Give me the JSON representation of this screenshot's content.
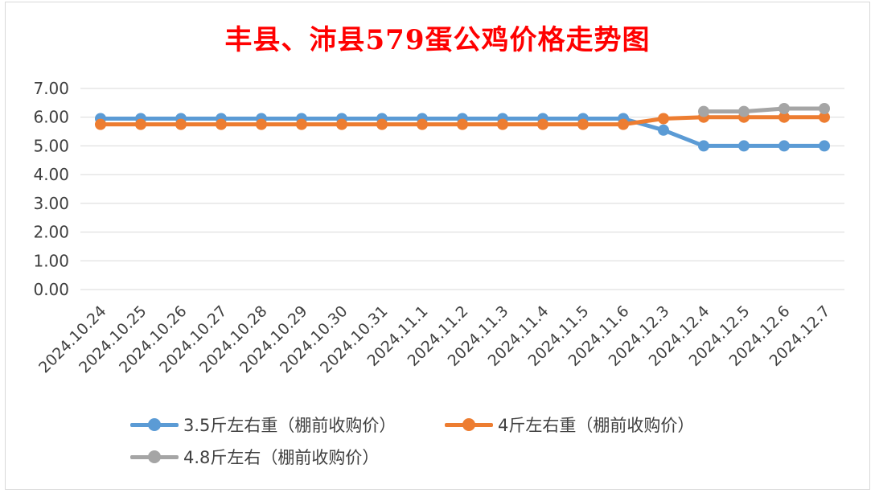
{
  "chart_data": {
    "type": "line",
    "title": "丰县、沛县579蛋公鸡价格走势图",
    "categories": [
      "2024.10.24",
      "2024.10.25",
      "2024.10.26",
      "2024.10.27",
      "2024.10.28",
      "2024.10.29",
      "2024.10.30",
      "2024.10.31",
      "2024.11.1",
      "2024.11.2",
      "2024.11.3",
      "2024.11.4",
      "2024.11.5",
      "2024.11.6",
      "2024.12.3",
      "2024.12.4",
      "2024.12.5",
      "2024.12.6",
      "2024.12.7"
    ],
    "ylim": [
      0,
      7
    ],
    "yticks": [
      "0.00",
      "1.00",
      "2.00",
      "3.00",
      "4.00",
      "5.00",
      "6.00",
      "7.00"
    ],
    "grid": true,
    "legend_position": "bottom",
    "series": [
      {
        "name": "3.5斤左右重（棚前收购价）",
        "color": "#5b9bd5",
        "values": [
          5.95,
          5.95,
          5.95,
          5.95,
          5.95,
          5.95,
          5.95,
          5.95,
          5.95,
          5.95,
          5.95,
          5.95,
          5.95,
          5.95,
          5.55,
          5.0,
          5.0,
          5.0,
          5.0
        ]
      },
      {
        "name": "4斤左右重（棚前收购价）",
        "color": "#ed7d31",
        "values": [
          5.75,
          5.75,
          5.75,
          5.75,
          5.75,
          5.75,
          5.75,
          5.75,
          5.75,
          5.75,
          5.75,
          5.75,
          5.75,
          5.75,
          5.95,
          6.0,
          6.0,
          6.0,
          6.0
        ]
      },
      {
        "name": "4.8斤左右（棚前收购价）",
        "color": "#a5a5a5",
        "values": [
          null,
          null,
          null,
          null,
          null,
          null,
          null,
          null,
          null,
          null,
          null,
          null,
          null,
          null,
          null,
          6.2,
          6.2,
          6.3,
          6.3
        ]
      }
    ]
  }
}
